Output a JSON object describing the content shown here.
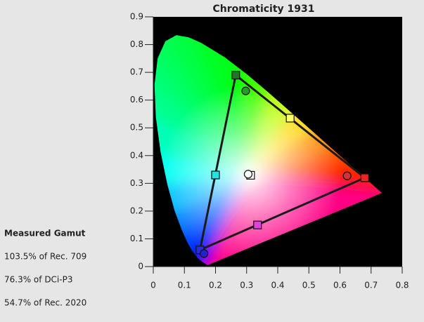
{
  "chart_data": {
    "type": "chromaticity",
    "title": "Chromaticity 1931",
    "xlim": [
      0,
      0.8
    ],
    "ylim": [
      0,
      0.9
    ],
    "xticks": [
      0,
      0.1,
      0.2,
      0.3,
      0.4,
      0.5,
      0.6,
      0.7,
      0.8
    ],
    "yticks": [
      0,
      0.1,
      0.2,
      0.3,
      0.4,
      0.5,
      0.6,
      0.7,
      0.8,
      0.9
    ],
    "locus": {
      "x": [
        0.1741,
        0.1566,
        0.144,
        0.1241,
        0.1096,
        0.0913,
        0.0687,
        0.0454,
        0.0235,
        0.0082,
        0.0039,
        0.0139,
        0.0389,
        0.0743,
        0.1142,
        0.1547,
        0.2296,
        0.3016,
        0.3731,
        0.4441,
        0.5125,
        0.5752,
        0.627,
        0.6915,
        0.7347
      ],
      "y": [
        0.005,
        0.0177,
        0.0297,
        0.0578,
        0.0868,
        0.1327,
        0.2007,
        0.295,
        0.4127,
        0.5384,
        0.6548,
        0.7502,
        0.812,
        0.8338,
        0.8262,
        0.8059,
        0.7543,
        0.6923,
        0.6245,
        0.5547,
        0.4866,
        0.4242,
        0.3725,
        0.3083,
        0.2653
      ]
    },
    "target": {
      "x": [
        0.68,
        0.265,
        0.15,
        0.44,
        0.2,
        0.335,
        0.3127
      ],
      "y": [
        0.32,
        0.69,
        0.06,
        0.535,
        0.33,
        0.15,
        0.329
      ],
      "colors": [
        "#ee2222",
        "#1c7a1c",
        "#2a2ad8",
        "#ffff66",
        "#22e4e4",
        "#e040e0",
        "#ffffff"
      ]
    },
    "measured": {
      "x": [
        0.623,
        0.297,
        0.163,
        0.305
      ],
      "y": [
        0.327,
        0.633,
        0.047,
        0.333
      ],
      "colors": [
        "#d23232",
        "#22a022",
        "#2222d2",
        "#ffffff"
      ]
    }
  },
  "gamut_summary": {
    "heading": "Measured Gamut",
    "lines": [
      "103.5% of Rec. 709",
      "76.3% of DCi-P3",
      "54.7% of Rec. 2020"
    ]
  }
}
